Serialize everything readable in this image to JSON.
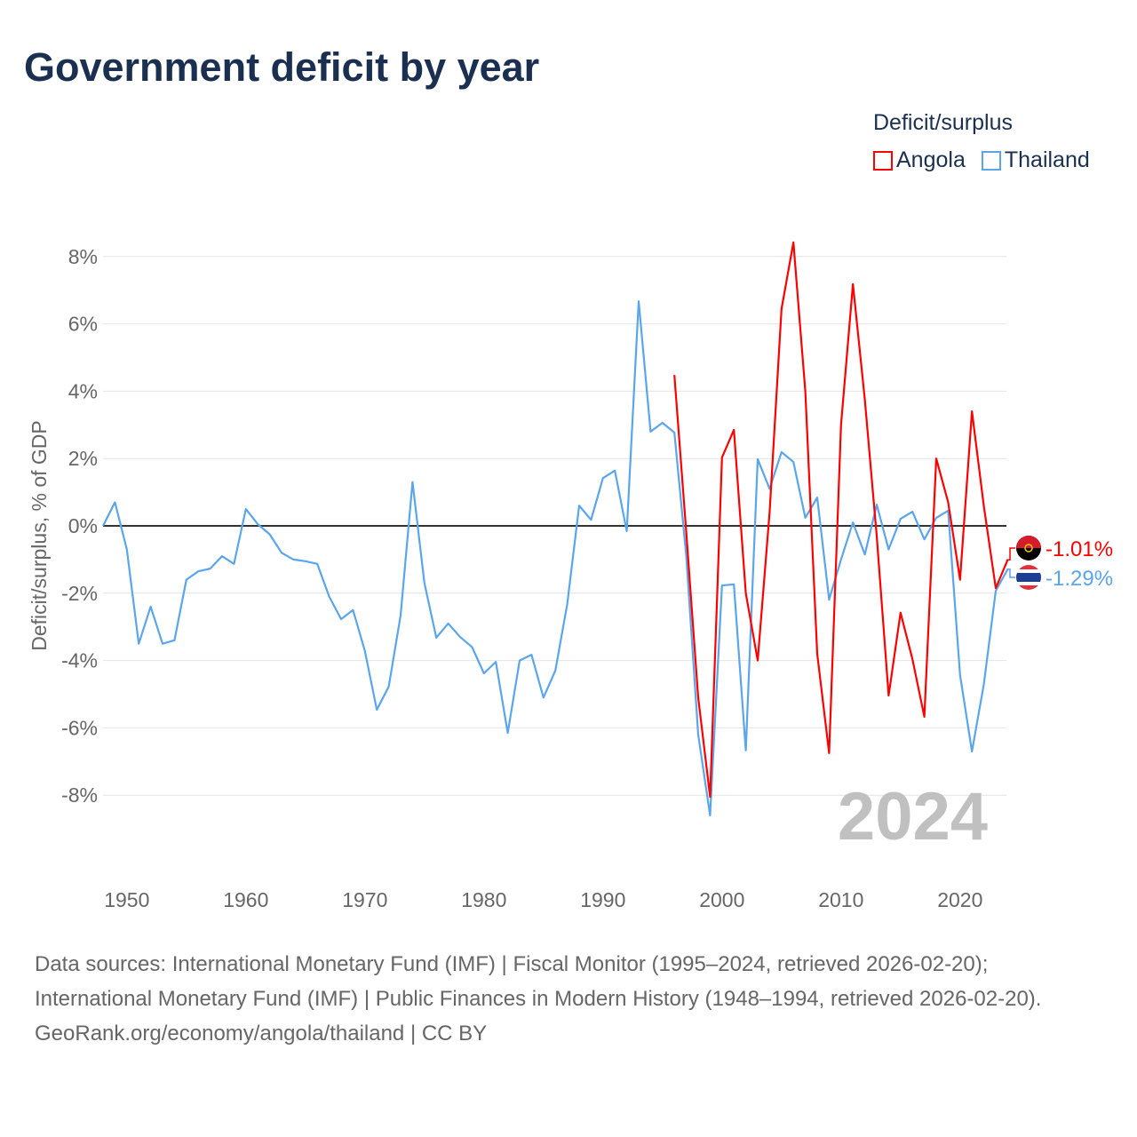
{
  "title": "Government deficit by year",
  "legend": {
    "title": "Deficit/surplus",
    "items": [
      {
        "name": "Angola",
        "color": "#ff0000"
      },
      {
        "name": "Thailand",
        "color": "#5aa5eb"
      }
    ]
  },
  "watermark_year": "2024",
  "footer": {
    "sources": "Data sources: International Monetary Fund (IMF) | Fiscal Monitor (1995–2024, retrieved 2026-02-20); International Monetary Fund (IMF) | Public Finances in Modern History (1948–1994, retrieved 2026-02-20).",
    "credit": "GeoRank.org/economy/angola/thailand | CC BY"
  },
  "chart_data": {
    "type": "line",
    "title": "Government deficit by year",
    "ylabel": "Deficit/surplus, % of GDP",
    "xlabel": "",
    "xlim": [
      1948,
      2024
    ],
    "ylim": [
      -10,
      8.5
    ],
    "x_ticks": [
      1950,
      1960,
      1970,
      1980,
      1990,
      2000,
      2010,
      2020
    ],
    "y_ticks": [
      8,
      6,
      4,
      2,
      0,
      -2,
      -4,
      -6,
      -8
    ],
    "y_tick_labels": [
      "8%",
      "6%",
      "4%",
      "2%",
      "0%",
      "-2%",
      "-4%",
      "-6%",
      "-8%"
    ],
    "grid": true,
    "legend_position": "top-right",
    "series": [
      {
        "name": "Angola",
        "color": "#ff0000",
        "end_label": "-1.01%",
        "start_year": 1996,
        "values": [
          4.48,
          -0.2,
          -5.1,
          -8.05,
          2.03,
          2.85,
          -2.0,
          -4.0,
          0.4,
          6.44,
          8.42,
          4.0,
          -3.8,
          -6.75,
          3.0,
          7.18,
          3.75,
          -0.3,
          -5.04,
          -2.58,
          -3.96,
          -5.67,
          2.0,
          0.7,
          -1.6,
          3.4,
          0.58,
          -1.85,
          -1.01
        ]
      },
      {
        "name": "Thailand",
        "color": "#5aa5eb",
        "end_label": "-1.29%",
        "start_year": 1948,
        "values": [
          0,
          0.7,
          -0.7,
          -3.5,
          -2.4,
          -3.5,
          -3.4,
          -1.6,
          -1.35,
          -1.27,
          -0.9,
          -1.13,
          0.5,
          0.05,
          -0.25,
          -0.8,
          -1.0,
          -1.05,
          -1.13,
          -2.1,
          -2.77,
          -2.5,
          -3.72,
          -5.46,
          -4.78,
          -2.66,
          1.3,
          -1.7,
          -3.32,
          -2.9,
          -3.3,
          -3.6,
          -4.38,
          -4.04,
          -6.15,
          -4.0,
          -3.83,
          -5.1,
          -4.3,
          -2.32,
          0.6,
          0.18,
          1.42,
          1.64,
          -0.16,
          6.67,
          2.8,
          3.06,
          2.77,
          -0.9,
          -6.2,
          -8.6,
          -1.77,
          -1.74,
          -6.67,
          1.98,
          1.1,
          2.19,
          1.9,
          0.24,
          0.84,
          -2.19,
          -1.0,
          0.1,
          -0.85,
          0.63,
          -0.7,
          0.21,
          0.42,
          -0.4,
          0.24,
          0.45,
          -4.43,
          -6.7,
          -4.7,
          -1.93,
          -1.29
        ]
      }
    ]
  }
}
